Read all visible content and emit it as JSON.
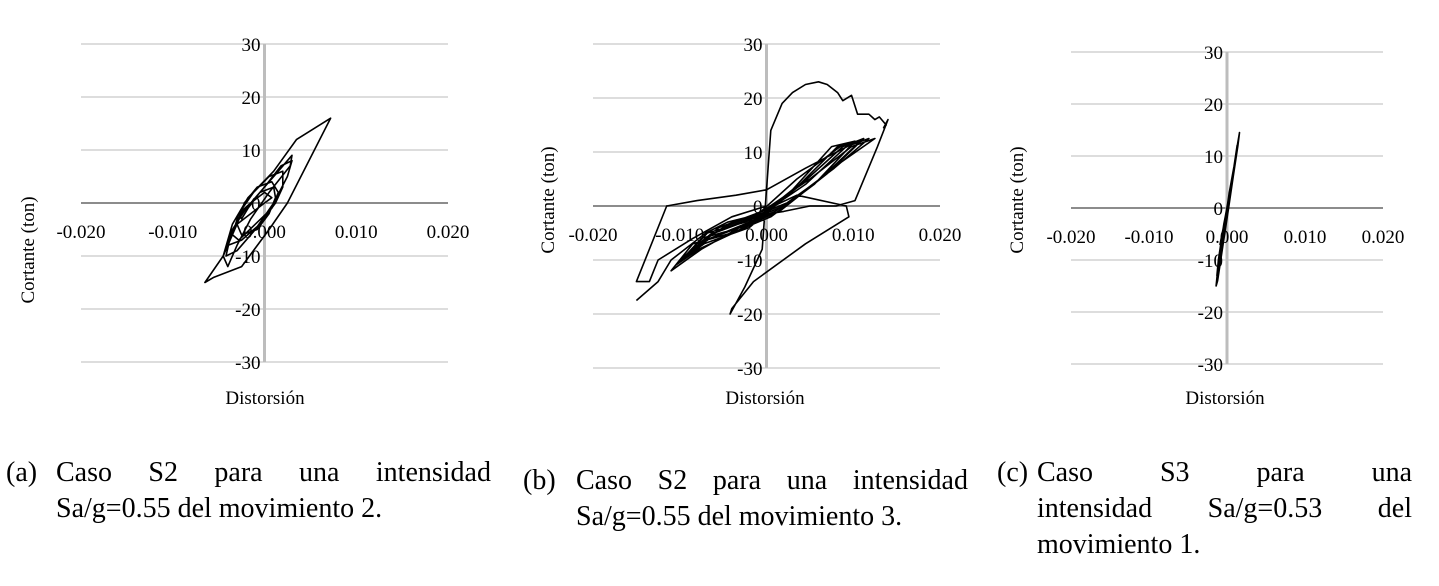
{
  "chart_data": [
    {
      "type": "line",
      "panel": "a",
      "title": "",
      "xlabel": "Distorsión",
      "ylabel": "Cortante (ton)",
      "xlim": [
        -0.02,
        0.02
      ],
      "ylim": [
        -30,
        30
      ],
      "xticks": [
        "-0.020",
        "-0.010",
        "0.000",
        "0.010",
        "0.020"
      ],
      "yticks": [
        "30",
        "20",
        "10",
        "0",
        "-10",
        "-20",
        "-30"
      ],
      "grid": "horizontal",
      "series": [
        {
          "x": [
            0.0,
            -0.003,
            -0.0045,
            -0.0065,
            -0.0055,
            -0.0025,
            0.0005,
            0.0025,
            0.0072,
            0.0035,
            0.001,
            -0.0018,
            -0.0035,
            -0.0045,
            -0.004,
            -0.003,
            -0.0015,
            0.0005,
            0.0028,
            0.003,
            0.0015,
            -0.0005,
            -0.0025,
            -0.0038,
            -0.0042,
            -0.003,
            -0.001,
            0.001,
            0.0025,
            0.003,
            0.0018,
            0.0,
            -0.002,
            -0.0035,
            -0.004,
            -0.0025,
            -0.0005,
            0.0012,
            0.002,
            0.002,
            0.0005,
            -0.0012,
            -0.0028,
            -0.0035,
            -0.0028,
            -0.001,
            0.0008,
            0.0015,
            0.0008,
            -0.0008,
            -0.0022,
            -0.003,
            -0.0025,
            -0.0008,
            0.0005,
            0.0012,
            0.001,
            -0.0005,
            -0.0018,
            -0.0025,
            -0.0028,
            -0.0015,
            0.0,
            0.0008,
            0.0
          ],
          "y": [
            0.0,
            -4.0,
            -10.0,
            -15.0,
            -14.0,
            -12.0,
            -5.0,
            0.0,
            16.0,
            12.0,
            6.0,
            1.0,
            -4.0,
            -10.0,
            -12.0,
            -8.0,
            -3.0,
            2.0,
            7.0,
            9.0,
            6.0,
            2.0,
            -2.0,
            -7.0,
            -10.0,
            -9.0,
            -5.0,
            0.0,
            5.0,
            8.0,
            7.0,
            3.0,
            -1.0,
            -5.0,
            -8.0,
            -7.0,
            -4.0,
            0.0,
            3.0,
            6.0,
            5.0,
            2.0,
            -2.0,
            -6.0,
            -7.0,
            -4.0,
            -1.0,
            2.0,
            4.0,
            3.0,
            0.0,
            -4.0,
            -6.0,
            -5.0,
            -2.0,
            1.0,
            3.0,
            2.0,
            -1.0,
            -3.0,
            -2.0,
            0.0,
            2.0,
            1.0,
            0.0
          ]
        }
      ]
    },
    {
      "type": "line",
      "panel": "b",
      "title": "",
      "xlabel": "Distorsión",
      "ylabel": "Cortante (ton)",
      "xlim": [
        -0.02,
        0.02
      ],
      "ylim": [
        -30,
        30
      ],
      "xticks": [
        "-0.020",
        "-0.010",
        "0.000",
        "0.010",
        "0.020"
      ],
      "yticks": [
        "30",
        "20",
        "10",
        "0",
        "-10",
        "-20",
        "-30"
      ],
      "grid": "horizontal",
      "series": [
        {
          "x": [
            0.0,
            -0.004,
            -0.0085,
            -0.0125,
            -0.013,
            -0.0135,
            -0.015,
            -0.0115,
            -0.008,
            -0.0035,
            0.0,
            0.0045,
            0.0105,
            0.0085,
            0.0035,
            -0.002,
            -0.0075,
            -0.011,
            -0.0085,
            -0.004,
            0.0005,
            0.0055,
            0.0102,
            0.0075,
            0.003,
            -0.0025,
            -0.0078,
            -0.0105,
            -0.008,
            -0.0035,
            0.001,
            0.0062,
            0.0108,
            0.0082,
            0.0032,
            -0.002,
            -0.0072,
            -0.0098,
            -0.0075,
            -0.003,
            0.0015,
            0.007,
            0.0112,
            0.0088,
            0.004,
            -0.0015,
            -0.0065,
            -0.0092,
            -0.0068,
            -0.0025,
            0.002,
            0.0078,
            0.0118,
            0.0092,
            0.0045,
            -0.001,
            -0.006,
            -0.0085,
            -0.006,
            -0.0015,
            0.003,
            0.0085,
            0.0125,
            0.0098,
            0.005,
            -0.0005,
            -0.0055,
            -0.0078,
            -0.005,
            -0.0005,
            0.0035,
            0.0092,
            0.0095,
            0.0045,
            -0.0015,
            -0.004,
            -0.0042,
            -0.0025,
            -0.0005,
            0.0005,
            0.0018,
            0.003,
            0.0045,
            0.006,
            0.007,
            0.0082,
            0.0088,
            0.0098,
            0.0105,
            0.0118,
            0.0125,
            0.013,
            0.0138,
            0.0135,
            0.014,
            0.0128,
            0.0102,
            0.008,
            0.005,
            0.002,
            0.0,
            -0.002,
            -0.0045,
            -0.007,
            -0.011,
            -0.0125,
            -0.015
          ],
          "y": [
            0.0,
            -2.0,
            -6.0,
            -10.0,
            -12.0,
            -14.0,
            -14.0,
            0.0,
            1.0,
            2.0,
            3.0,
            7.0,
            12.0,
            11.0,
            5.0,
            -3.0,
            -8.0,
            -12.0,
            -7.0,
            -5.0,
            -2.0,
            4.0,
            12.0,
            11.0,
            3.0,
            -4.0,
            -8.0,
            -11.0,
            -7.0,
            -4.0,
            -1.0,
            5.0,
            12.0,
            11.0,
            3.0,
            -4.0,
            -7.0,
            -10.0,
            -6.0,
            -4.0,
            -1.0,
            6.0,
            12.5,
            11.0,
            4.0,
            -3.0,
            -6.0,
            -9.0,
            -5.0,
            -3.0,
            0.0,
            7.0,
            12.5,
            11.0,
            4.0,
            -2.0,
            -5.0,
            -8.0,
            -5.0,
            -2.0,
            1.0,
            8.0,
            12.5,
            11.0,
            5.0,
            -1.0,
            -4.0,
            -7.0,
            -4.0,
            -1.0,
            2.0,
            0.0,
            -2.0,
            -7.0,
            -14.0,
            -19.0,
            -20.0,
            -15.0,
            -8.0,
            14.0,
            19.0,
            21.0,
            22.5,
            23.0,
            22.5,
            21.0,
            19.5,
            20.5,
            17.0,
            17.0,
            16.0,
            16.5,
            15.0,
            14.5,
            16.0,
            11.0,
            1.0,
            0.0,
            0.0,
            -1.0,
            -1.5,
            -2.0,
            -3.0,
            -5.0,
            -10.0,
            -14.0,
            -17.5
          ]
        }
      ]
    },
    {
      "type": "line",
      "panel": "c",
      "title": "",
      "xlabel": "Distorsión",
      "ylabel": "Cortante (ton)",
      "xlim": [
        -0.02,
        0.02
      ],
      "ylim": [
        -30,
        30
      ],
      "xticks": [
        "-0.020",
        "-0.010",
        "0.000",
        "0.010",
        "0.020"
      ],
      "yticks": [
        "30",
        "20",
        "10",
        "0",
        "-10",
        "-20",
        "-30"
      ],
      "grid": "horizontal",
      "series": [
        {
          "x": [
            0.0,
            -0.0004,
            -0.001,
            -0.0014,
            -0.0012,
            -0.0006,
            0.0002,
            0.0008,
            0.0014,
            0.0016,
            0.0012,
            0.0006,
            0.0,
            -0.0006,
            -0.0011,
            -0.0013,
            -0.0009,
            -0.0003,
            0.0003,
            0.0009,
            0.0013,
            0.0011,
            0.0005,
            -0.0001,
            -0.0007,
            -0.0011,
            -0.0008,
            -0.0002,
            0.0004,
            0.0009,
            0.0007,
            0.0001,
            -0.0005,
            -0.0009,
            -0.0006,
            0.0,
            0.0005,
            0.0003,
            0.0
          ],
          "y": [
            0.0,
            -3.0,
            -9.0,
            -15.0,
            -14.0,
            -8.0,
            0.0,
            6.0,
            12.0,
            14.5,
            11.0,
            5.0,
            0.0,
            -5.0,
            -10.0,
            -13.0,
            -9.0,
            -3.0,
            3.0,
            8.0,
            12.0,
            10.0,
            4.0,
            -1.0,
            -6.0,
            -10.0,
            -7.0,
            -2.0,
            3.0,
            7.0,
            6.0,
            1.0,
            -4.0,
            -7.0,
            -5.0,
            0.0,
            4.0,
            2.0,
            0.0
          ]
        }
      ]
    }
  ],
  "captions": [
    {
      "tag": "(a)",
      "line1": "Caso S2 para una intensidad",
      "line2": "Sa/g=0.55 del movimiento 2.",
      "line3": ""
    },
    {
      "tag": "(b)",
      "line1": "Caso S2 para una intensidad",
      "line2": "Sa/g=0.55 del movimiento 3.",
      "line3": ""
    },
    {
      "tag": "(c)",
      "line1": "Caso S3 para una",
      "line2": "intensidad Sa/g=0.53 del",
      "line3": "movimiento 1."
    }
  ]
}
